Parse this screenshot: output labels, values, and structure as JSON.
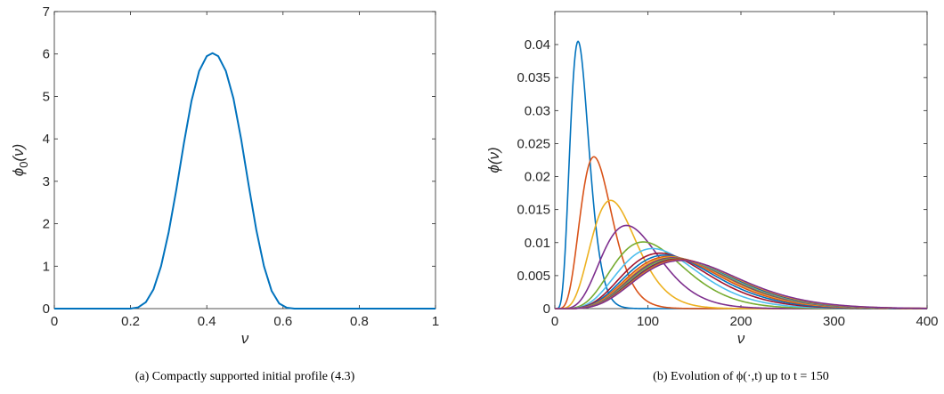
{
  "chart_data": [
    {
      "type": "line",
      "panel": "a",
      "caption": "(a) Compactly supported initial profile (4.3)",
      "xlabel": "ν",
      "ylabel_main": "ϕ",
      "ylabel_sub": "0",
      "ylabel_arg": "(ν)",
      "xlim": [
        0,
        1
      ],
      "ylim": [
        0,
        7
      ],
      "xticks": [
        "0",
        "0.2",
        "0.4",
        "0.6",
        "0.8",
        "1"
      ],
      "yticks": [
        "0",
        "1",
        "2",
        "3",
        "4",
        "5",
        "6",
        "7"
      ],
      "series": [
        {
          "color": "#0072BD",
          "x": [
            0,
            0.2,
            0.22,
            0.24,
            0.26,
            0.28,
            0.3,
            0.32,
            0.34,
            0.36,
            0.38,
            0.4,
            0.415,
            0.43,
            0.45,
            0.47,
            0.49,
            0.51,
            0.53,
            0.55,
            0.57,
            0.59,
            0.61,
            0.63,
            1
          ],
          "y": [
            0,
            0,
            0.03,
            0.15,
            0.45,
            1.0,
            1.8,
            2.8,
            3.9,
            4.9,
            5.6,
            5.95,
            6.02,
            5.95,
            5.6,
            4.95,
            4.0,
            2.9,
            1.85,
            1.0,
            0.42,
            0.12,
            0.02,
            0,
            0
          ]
        }
      ]
    },
    {
      "type": "line",
      "panel": "b",
      "caption": "(b) Evolution of ϕ(·,t) up to t = 150",
      "xlabel": "ν",
      "ylabel": "ϕ(ν)",
      "xlim": [
        0,
        400
      ],
      "ylim": [
        0,
        0.045
      ],
      "xticks": [
        "0",
        "100",
        "200",
        "300",
        "400"
      ],
      "yticks": [
        "0",
        "0.005",
        "0.01",
        "0.015",
        "0.02",
        "0.025",
        "0.03",
        "0.035",
        "0.04"
      ],
      "series": [
        {
          "color": "#0072BD",
          "peak_x": 25,
          "peak_y": 0.0405
        },
        {
          "color": "#D95319",
          "peak_x": 42,
          "peak_y": 0.023
        },
        {
          "color": "#EDB120",
          "peak_x": 60,
          "peak_y": 0.0164
        },
        {
          "color": "#7E2F8E",
          "peak_x": 77,
          "peak_y": 0.0126
        },
        {
          "color": "#77AC30",
          "peak_x": 95,
          "peak_y": 0.0101
        },
        {
          "color": "#4DBEEE",
          "peak_x": 105,
          "peak_y": 0.0091
        },
        {
          "color": "#A2142F",
          "peak_x": 113,
          "peak_y": 0.0084
        },
        {
          "color": "#0072BD",
          "peak_x": 118,
          "peak_y": 0.0081
        },
        {
          "color": "#D95319",
          "peak_x": 122,
          "peak_y": 0.0079
        },
        {
          "color": "#EDB120",
          "peak_x": 125,
          "peak_y": 0.0078
        },
        {
          "color": "#7E2F8E",
          "peak_x": 127,
          "peak_y": 0.0077
        },
        {
          "color": "#77AC30",
          "peak_x": 129,
          "peak_y": 0.0076
        },
        {
          "color": "#4DBEEE",
          "peak_x": 131,
          "peak_y": 0.0075
        },
        {
          "color": "#A2142F",
          "peak_x": 132,
          "peak_y": 0.0075
        },
        {
          "color": "#0072BD",
          "peak_x": 133,
          "peak_y": 0.0074
        },
        {
          "color": "#D95319",
          "peak_x": 134,
          "peak_y": 0.0074
        },
        {
          "color": "#EDB120",
          "peak_x": 135,
          "peak_y": 0.0073
        },
        {
          "color": "#7E2F8E",
          "peak_x": 136,
          "peak_y": 0.0073
        }
      ]
    }
  ]
}
